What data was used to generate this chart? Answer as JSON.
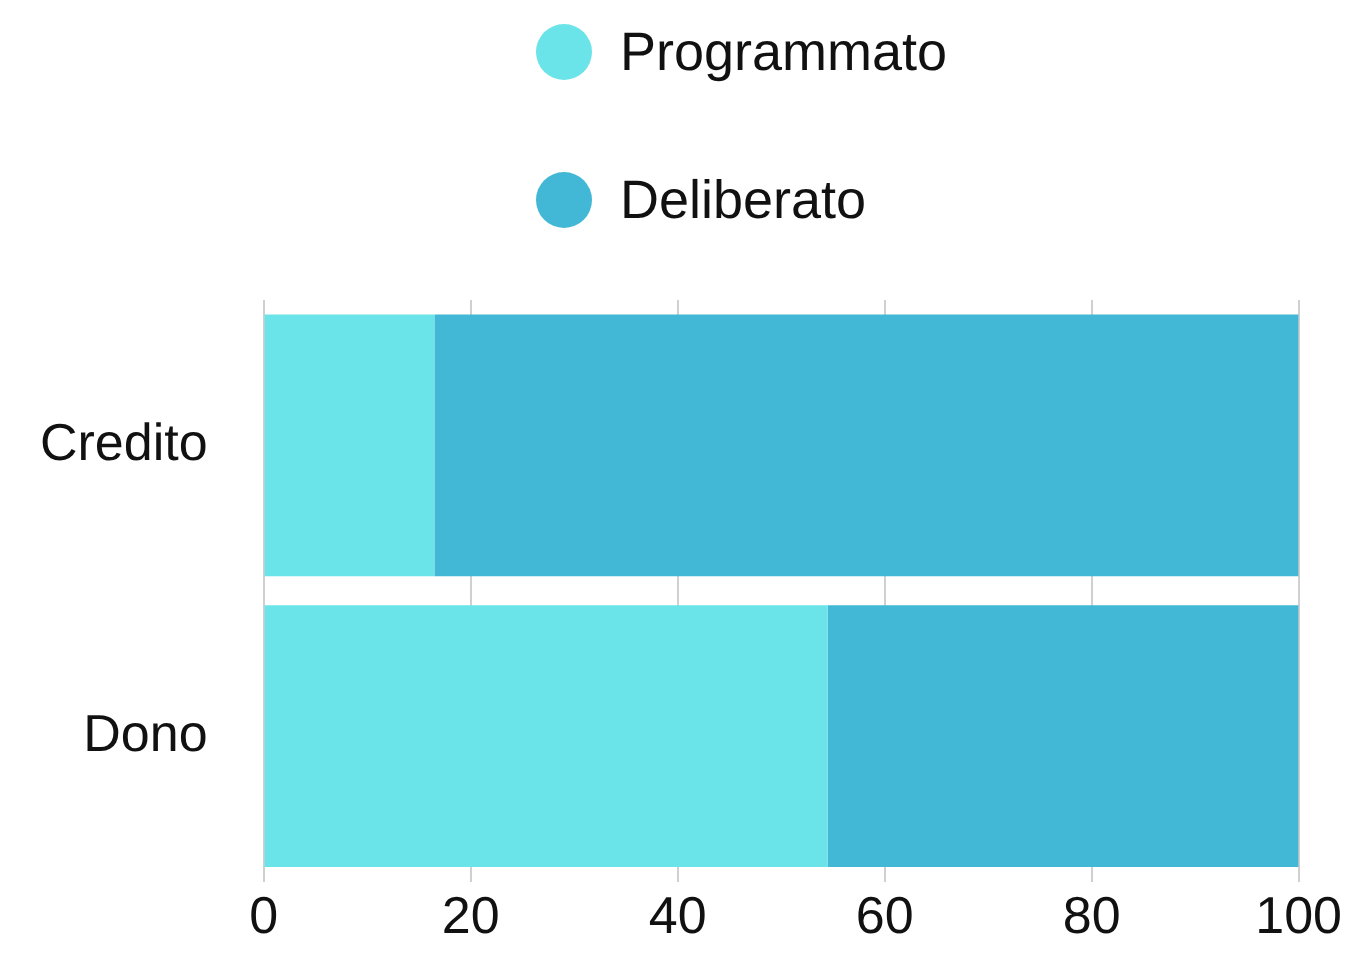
{
  "chart_data": {
    "type": "bar",
    "orientation": "horizontal",
    "stacked": true,
    "categories": [
      "Credito",
      "Dono"
    ],
    "series": [
      {
        "name": "Programmato",
        "color": "#6ae4e8",
        "values": [
          16.5,
          54.5
        ]
      },
      {
        "name": "Deliberato",
        "color": "#42b8d6",
        "values": [
          83.5,
          45.5
        ]
      }
    ],
    "xlim": [
      0,
      100
    ],
    "xticks": [
      0,
      20,
      40,
      60,
      80,
      100
    ],
    "grid": "x",
    "legend": "top"
  }
}
